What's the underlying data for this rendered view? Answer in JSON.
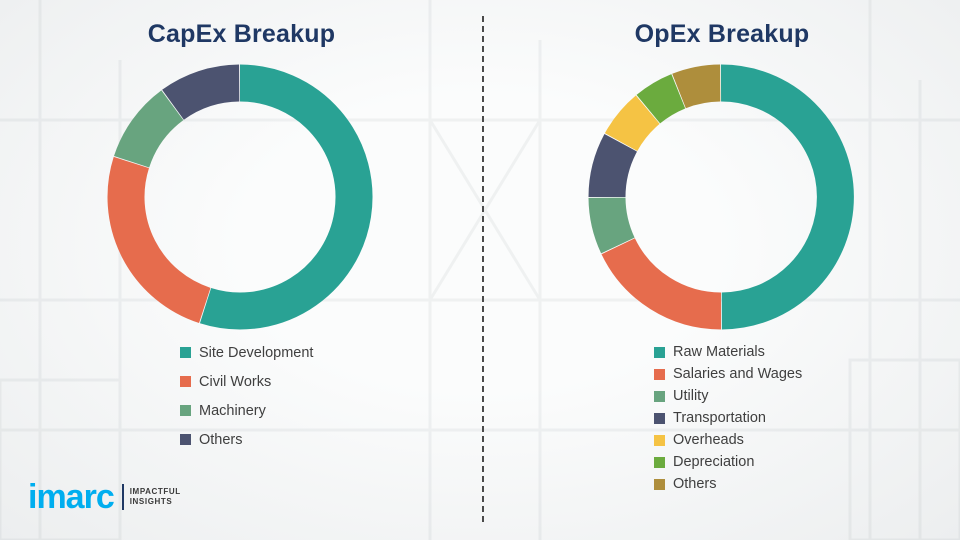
{
  "logo": {
    "brand": "imarc",
    "tagline_line1": "IMPACTFUL",
    "tagline_line2": "INSIGHTS"
  },
  "chart_data": [
    {
      "type": "pie",
      "donut": true,
      "title": "CapEx Breakup",
      "labels": [
        "Site Development",
        "Civil Works",
        "Machinery",
        "Others"
      ],
      "values": [
        55,
        25,
        10,
        10
      ],
      "colors": [
        "#29a294",
        "#e66c4d",
        "#68a47f",
        "#4c5370"
      ],
      "legend_position": "bottom"
    },
    {
      "type": "pie",
      "donut": true,
      "title": "OpEx Breakup",
      "labels": [
        "Raw Materials",
        "Salaries and Wages",
        "Utility",
        "Transportation",
        "Overheads",
        "Depreciation",
        "Others"
      ],
      "values": [
        50,
        18,
        7,
        8,
        6,
        5,
        6
      ],
      "colors": [
        "#29a294",
        "#e66c4d",
        "#68a47f",
        "#4c5370",
        "#f5c344",
        "#6bab3e",
        "#ae8e3c"
      ],
      "legend_position": "bottom"
    }
  ]
}
